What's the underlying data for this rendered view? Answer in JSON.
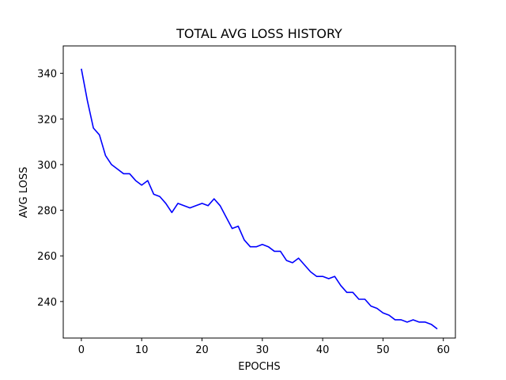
{
  "chart_data": {
    "type": "line",
    "title": "TOTAL AVG LOSS HISTORY",
    "xlabel": "EPOCHS",
    "ylabel": "AVG LOSS",
    "xlim": [
      -3,
      62
    ],
    "ylim": [
      224,
      352
    ],
    "xticks": [
      0,
      10,
      20,
      30,
      40,
      50,
      60
    ],
    "yticks": [
      240,
      260,
      280,
      300,
      320,
      340
    ],
    "grid": false,
    "series": [
      {
        "color": "#0000ff",
        "x": [
          0,
          1,
          2,
          3,
          4,
          5,
          6,
          7,
          8,
          9,
          10,
          11,
          12,
          13,
          14,
          15,
          16,
          17,
          18,
          19,
          20,
          21,
          22,
          23,
          24,
          25,
          26,
          27,
          28,
          29,
          30,
          31,
          32,
          33,
          34,
          35,
          36,
          37,
          38,
          39,
          40,
          41,
          42,
          43,
          44,
          45,
          46,
          47,
          48,
          49,
          50,
          51,
          52,
          53,
          54,
          55,
          56,
          57,
          58,
          59
        ],
        "y": [
          342,
          328,
          316,
          313,
          304,
          300,
          298,
          296,
          296,
          293,
          291,
          293,
          287,
          286,
          283,
          279,
          283,
          282,
          281,
          282,
          283,
          282,
          285,
          282,
          277,
          272,
          273,
          267,
          264,
          264,
          265,
          264,
          262,
          262,
          258,
          257,
          259,
          256,
          253,
          251,
          251,
          250,
          251,
          247,
          244,
          244,
          241,
          241,
          238,
          237,
          235,
          234,
          232,
          232,
          231,
          232,
          231,
          231,
          230,
          228
        ]
      }
    ]
  }
}
